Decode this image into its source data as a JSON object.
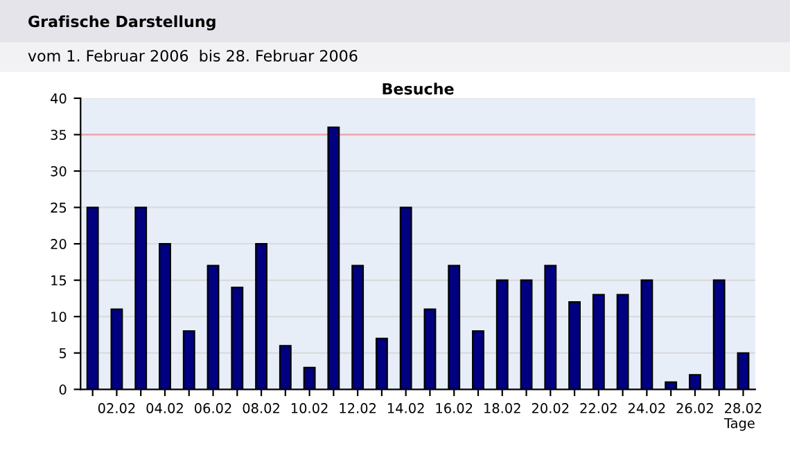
{
  "chart_data": {
    "type": "bar",
    "title": "Besuche",
    "xlabel": "Tage",
    "annotations": [
      "Grafische Darstellung",
      "vom 1. Februar 2006  bis 28. Februar 2006"
    ],
    "categories": [
      null,
      "02.02",
      null,
      "04.02",
      null,
      "06.02",
      null,
      "08.02",
      null,
      "10.02",
      null,
      "12.02",
      null,
      "14.02",
      null,
      "16.02",
      null,
      "18.02",
      null,
      "20.02",
      null,
      "22.02",
      null,
      "24.02",
      null,
      "26.02",
      null,
      "28.02"
    ],
    "values": [
      25,
      11,
      25,
      20,
      8,
      17,
      14,
      20,
      6,
      3,
      36,
      17,
      7,
      25,
      11,
      17,
      8,
      15,
      15,
      17,
      12,
      13,
      13,
      15,
      1,
      2,
      15,
      5
    ],
    "color": "#000080",
    "ylim": [
      0,
      40
    ],
    "yticks": [
      0,
      5,
      10,
      15,
      20,
      25,
      30,
      35,
      40
    ],
    "grid": "y",
    "ref_lines": [
      {
        "axis": "y",
        "value": 35,
        "color": "#f0a0a8"
      }
    ]
  }
}
